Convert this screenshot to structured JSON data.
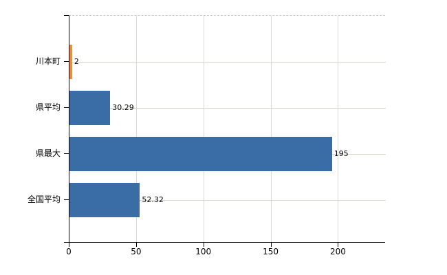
{
  "chart_data": {
    "type": "bar",
    "orientation": "horizontal",
    "title": "",
    "xlabel": "",
    "ylabel": "",
    "categories": [
      "川本町",
      "県平均",
      "県最大",
      "全国平均"
    ],
    "values": [
      2,
      30.29,
      195,
      52.32
    ],
    "value_labels": [
      "2",
      "30.29",
      "195",
      "52.32"
    ],
    "series": [
      {
        "name": "値",
        "values": [
          2,
          30.29,
          195,
          52.32
        ]
      }
    ],
    "bar_colors": [
      "#ef8e2a",
      "#3a6ca6",
      "#3a6ca6",
      "#3a6ca6"
    ],
    "x_ticks": [
      0,
      50,
      100,
      150,
      200
    ],
    "x_tick_labels": [
      "0",
      "50",
      "100",
      "150",
      "200"
    ],
    "xlim": [
      0,
      235
    ],
    "grid": {
      "vertical": true,
      "horizontal": true
    },
    "legend": "none",
    "colors": {
      "highlight_bar": "#ef8e2a",
      "default_bar": "#3a6ca6",
      "axis": "#000000",
      "gridline": "#d9d9d9",
      "plot_top_border": "#c9c9c9",
      "background": "#ffffff",
      "text": "#000000"
    }
  }
}
